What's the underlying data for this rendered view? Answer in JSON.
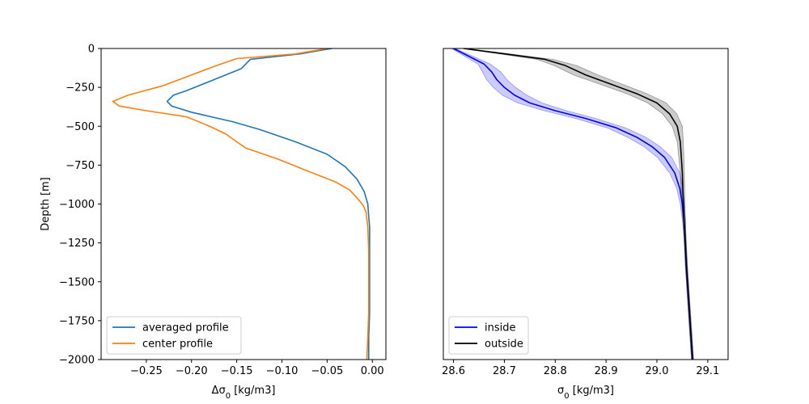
{
  "chart_data": [
    {
      "type": "line",
      "panel": "left",
      "xlabel": "Δσ0 [kg/m3]",
      "xlabel_main": "Δσ",
      "xlabel_sub": "0",
      "xlabel_unit": " [kg/m3]",
      "ylabel": "Depth [m]",
      "xlim": [
        -0.3,
        0.015
      ],
      "ylim": [
        -2000,
        0
      ],
      "xticks": [
        -0.25,
        -0.2,
        -0.15,
        -0.1,
        -0.05,
        0.0
      ],
      "xtick_labels": [
        "−0.25",
        "−0.20",
        "−0.15",
        "−0.10",
        "−0.05",
        "0.00"
      ],
      "yticks": [
        0,
        -250,
        -500,
        -750,
        -1000,
        -1250,
        -1500,
        -1750,
        -2000
      ],
      "ytick_labels": [
        "0",
        "−250",
        "−500",
        "−750",
        "−1000",
        "−1250",
        "−1500",
        "−1750",
        "−2000"
      ],
      "legend_location": "lower-left",
      "series": [
        {
          "name": "averaged profile",
          "color": "#1f77b4",
          "points": [
            [
              -0.045,
              0
            ],
            [
              -0.08,
              -35
            ],
            [
              -0.135,
              -70
            ],
            [
              -0.145,
              -130
            ],
            [
              -0.175,
              -200
            ],
            [
              -0.205,
              -270
            ],
            [
              -0.22,
              -300
            ],
            [
              -0.227,
              -340
            ],
            [
              -0.222,
              -370
            ],
            [
              -0.2,
              -410
            ],
            [
              -0.155,
              -470
            ],
            [
              -0.125,
              -520
            ],
            [
              -0.085,
              -600
            ],
            [
              -0.05,
              -680
            ],
            [
              -0.03,
              -760
            ],
            [
              -0.017,
              -840
            ],
            [
              -0.009,
              -920
            ],
            [
              -0.005,
              -1000
            ],
            [
              -0.004,
              -1080
            ],
            [
              -0.003,
              -1150
            ],
            [
              -0.003,
              -1300
            ],
            [
              -0.003,
              -1500
            ],
            [
              -0.003,
              -1700
            ],
            [
              -0.004,
              -1850
            ],
            [
              -0.004,
              -2000
            ]
          ]
        },
        {
          "name": "center profile",
          "color": "#ff7f0e",
          "points": [
            [
              -0.05,
              0
            ],
            [
              -0.085,
              -35
            ],
            [
              -0.15,
              -65
            ],
            [
              -0.17,
              -105
            ],
            [
              -0.2,
              -170
            ],
            [
              -0.232,
              -240
            ],
            [
              -0.27,
              -300
            ],
            [
              -0.287,
              -340
            ],
            [
              -0.28,
              -370
            ],
            [
              -0.25,
              -400
            ],
            [
              -0.205,
              -440
            ],
            [
              -0.18,
              -500
            ],
            [
              -0.162,
              -550
            ],
            [
              -0.15,
              -600
            ],
            [
              -0.14,
              -640
            ],
            [
              -0.105,
              -710
            ],
            [
              -0.075,
              -780
            ],
            [
              -0.04,
              -860
            ],
            [
              -0.025,
              -910
            ],
            [
              -0.017,
              -960
            ],
            [
              -0.01,
              -1010
            ],
            [
              -0.007,
              -1050
            ],
            [
              -0.005,
              -1150
            ],
            [
              -0.004,
              -1300
            ],
            [
              -0.004,
              -1500
            ],
            [
              -0.004,
              -1700
            ],
            [
              -0.005,
              -1850
            ],
            [
              -0.006,
              -2000
            ]
          ]
        }
      ]
    },
    {
      "type": "line",
      "panel": "right",
      "xlabel": "σ0 [kg/m3]",
      "xlabel_main": "σ",
      "xlabel_sub": "0",
      "xlabel_unit": " [kg/m3]",
      "ylabel": "",
      "xlim": [
        28.58,
        29.14
      ],
      "ylim": [
        -2000,
        0
      ],
      "xticks": [
        28.6,
        28.7,
        28.8,
        28.9,
        29.0,
        29.1
      ],
      "xtick_labels": [
        "28.6",
        "28.7",
        "28.8",
        "28.9",
        "29.0",
        "29.1"
      ],
      "yticks_shown": false,
      "legend_location": "lower-left",
      "series": [
        {
          "name": "inside",
          "color": "#0000ff",
          "band_color": "#0000ff",
          "band_opacity": 0.2,
          "points": [
            [
              28.6,
              0
            ],
            [
              28.63,
              -50
            ],
            [
              28.66,
              -100
            ],
            [
              28.675,
              -150
            ],
            [
              28.685,
              -200
            ],
            [
              28.7,
              -250
            ],
            [
              28.72,
              -300
            ],
            [
              28.75,
              -350
            ],
            [
              28.8,
              -400
            ],
            [
              28.86,
              -450
            ],
            [
              28.92,
              -510
            ],
            [
              28.96,
              -570
            ],
            [
              28.99,
              -630
            ],
            [
              29.015,
              -700
            ],
            [
              29.035,
              -800
            ],
            [
              29.045,
              -900
            ],
            [
              29.05,
              -1000
            ],
            [
              29.053,
              -1100
            ],
            [
              29.055,
              -1200
            ],
            [
              29.058,
              -1400
            ],
            [
              29.062,
              -1600
            ],
            [
              29.066,
              -1800
            ],
            [
              29.07,
              -2000
            ]
          ],
          "band_halfwidth": [
            0.004,
            0.008,
            0.012,
            0.018,
            0.02,
            0.022,
            0.024,
            0.024,
            0.022,
            0.02,
            0.018,
            0.018,
            0.016,
            0.014,
            0.01,
            0.006,
            0.004,
            0.003,
            0.002,
            0.002,
            0.002,
            0.002,
            0.002
          ]
        },
        {
          "name": "outside",
          "color": "#000000",
          "band_color": "#000000",
          "band_opacity": 0.2,
          "points": [
            [
              28.62,
              0
            ],
            [
              28.69,
              -30
            ],
            [
              28.78,
              -70
            ],
            [
              28.82,
              -110
            ],
            [
              28.86,
              -170
            ],
            [
              28.91,
              -230
            ],
            [
              28.96,
              -290
            ],
            [
              29.0,
              -350
            ],
            [
              29.025,
              -420
            ],
            [
              29.04,
              -500
            ],
            [
              29.046,
              -600
            ],
            [
              29.05,
              -800
            ],
            [
              29.052,
              -1000
            ],
            [
              29.055,
              -1200
            ],
            [
              29.058,
              -1400
            ],
            [
              29.062,
              -1600
            ],
            [
              29.066,
              -1800
            ],
            [
              29.07,
              -2000
            ]
          ],
          "band_halfwidth": [
            0.004,
            0.01,
            0.016,
            0.022,
            0.024,
            0.022,
            0.02,
            0.018,
            0.014,
            0.01,
            0.006,
            0.004,
            0.003,
            0.002,
            0.002,
            0.002,
            0.002,
            0.002
          ]
        }
      ]
    }
  ]
}
